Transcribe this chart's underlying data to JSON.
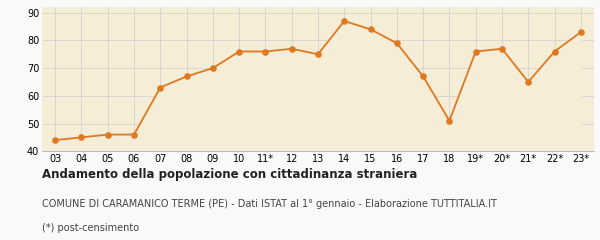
{
  "x_labels": [
    "03",
    "04",
    "05",
    "06",
    "07",
    "08",
    "09",
    "10",
    "11*",
    "12",
    "13",
    "14",
    "15",
    "16",
    "17",
    "18",
    "19*",
    "20*",
    "21*",
    "22*",
    "23*"
  ],
  "y_values": [
    44,
    45,
    46,
    46,
    63,
    67,
    70,
    76,
    76,
    77,
    75,
    87,
    84,
    79,
    67,
    51,
    76,
    77,
    65,
    76,
    83
  ],
  "line_color": "#E07820",
  "fill_color": "#F5EDD6",
  "marker_color": "#E07820",
  "bg_color": "#F9F9F9",
  "grid_color": "#CCCCCC",
  "ylim": [
    40,
    92
  ],
  "yticks": [
    40,
    50,
    60,
    70,
    80,
    90
  ],
  "title": "Andamento della popolazione con cittadinanza straniera",
  "subtitle": "COMUNE DI CARAMANICO TERME (PE) - Dati ISTAT al 1° gennaio - Elaborazione TUTTITALIA.IT",
  "footnote": "(*) post-censimento",
  "title_fontsize": 8.5,
  "subtitle_fontsize": 7.0,
  "footnote_fontsize": 7.0,
  "tick_fontsize": 7.0
}
